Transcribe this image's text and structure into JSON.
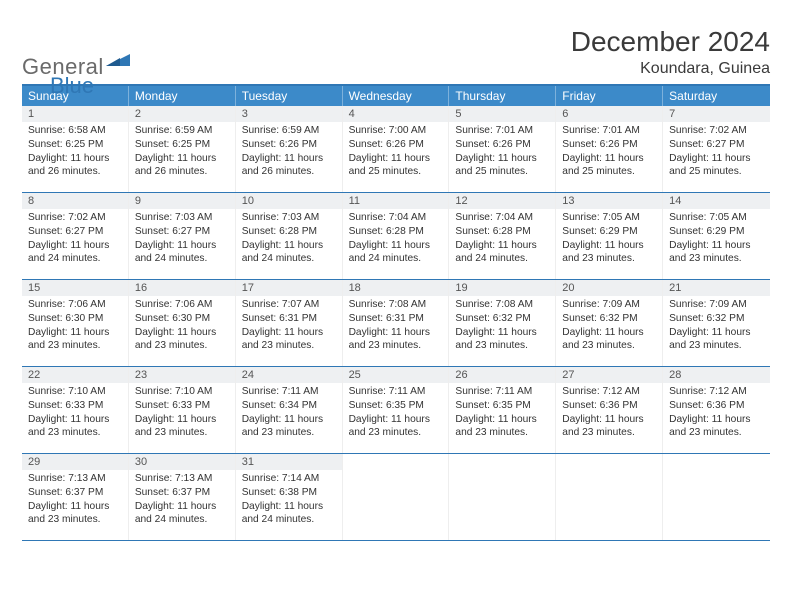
{
  "brand": {
    "text1": "General",
    "text2": "Blue",
    "color_general": "#6a6a6a",
    "color_blue": "#2f77b5",
    "mark_color": "#2f77b5"
  },
  "title": {
    "month": "December 2024",
    "location": "Koundara, Guinea"
  },
  "palette": {
    "header_bg": "#3c8ac9",
    "header_text": "#ffffff",
    "daynum_bg": "#eef0f2",
    "rule_color": "#2f77b5",
    "body_text": "#333333"
  },
  "weekdays": [
    "Sunday",
    "Monday",
    "Tuesday",
    "Wednesday",
    "Thursday",
    "Friday",
    "Saturday"
  ],
  "weeks": [
    [
      {
        "n": "1",
        "sr": "Sunrise: 6:58 AM",
        "ss": "Sunset: 6:25 PM",
        "d1": "Daylight: 11 hours",
        "d2": "and 26 minutes."
      },
      {
        "n": "2",
        "sr": "Sunrise: 6:59 AM",
        "ss": "Sunset: 6:25 PM",
        "d1": "Daylight: 11 hours",
        "d2": "and 26 minutes."
      },
      {
        "n": "3",
        "sr": "Sunrise: 6:59 AM",
        "ss": "Sunset: 6:26 PM",
        "d1": "Daylight: 11 hours",
        "d2": "and 26 minutes."
      },
      {
        "n": "4",
        "sr": "Sunrise: 7:00 AM",
        "ss": "Sunset: 6:26 PM",
        "d1": "Daylight: 11 hours",
        "d2": "and 25 minutes."
      },
      {
        "n": "5",
        "sr": "Sunrise: 7:01 AM",
        "ss": "Sunset: 6:26 PM",
        "d1": "Daylight: 11 hours",
        "d2": "and 25 minutes."
      },
      {
        "n": "6",
        "sr": "Sunrise: 7:01 AM",
        "ss": "Sunset: 6:26 PM",
        "d1": "Daylight: 11 hours",
        "d2": "and 25 minutes."
      },
      {
        "n": "7",
        "sr": "Sunrise: 7:02 AM",
        "ss": "Sunset: 6:27 PM",
        "d1": "Daylight: 11 hours",
        "d2": "and 25 minutes."
      }
    ],
    [
      {
        "n": "8",
        "sr": "Sunrise: 7:02 AM",
        "ss": "Sunset: 6:27 PM",
        "d1": "Daylight: 11 hours",
        "d2": "and 24 minutes."
      },
      {
        "n": "9",
        "sr": "Sunrise: 7:03 AM",
        "ss": "Sunset: 6:27 PM",
        "d1": "Daylight: 11 hours",
        "d2": "and 24 minutes."
      },
      {
        "n": "10",
        "sr": "Sunrise: 7:03 AM",
        "ss": "Sunset: 6:28 PM",
        "d1": "Daylight: 11 hours",
        "d2": "and 24 minutes."
      },
      {
        "n": "11",
        "sr": "Sunrise: 7:04 AM",
        "ss": "Sunset: 6:28 PM",
        "d1": "Daylight: 11 hours",
        "d2": "and 24 minutes."
      },
      {
        "n": "12",
        "sr": "Sunrise: 7:04 AM",
        "ss": "Sunset: 6:28 PM",
        "d1": "Daylight: 11 hours",
        "d2": "and 24 minutes."
      },
      {
        "n": "13",
        "sr": "Sunrise: 7:05 AM",
        "ss": "Sunset: 6:29 PM",
        "d1": "Daylight: 11 hours",
        "d2": "and 23 minutes."
      },
      {
        "n": "14",
        "sr": "Sunrise: 7:05 AM",
        "ss": "Sunset: 6:29 PM",
        "d1": "Daylight: 11 hours",
        "d2": "and 23 minutes."
      }
    ],
    [
      {
        "n": "15",
        "sr": "Sunrise: 7:06 AM",
        "ss": "Sunset: 6:30 PM",
        "d1": "Daylight: 11 hours",
        "d2": "and 23 minutes."
      },
      {
        "n": "16",
        "sr": "Sunrise: 7:06 AM",
        "ss": "Sunset: 6:30 PM",
        "d1": "Daylight: 11 hours",
        "d2": "and 23 minutes."
      },
      {
        "n": "17",
        "sr": "Sunrise: 7:07 AM",
        "ss": "Sunset: 6:31 PM",
        "d1": "Daylight: 11 hours",
        "d2": "and 23 minutes."
      },
      {
        "n": "18",
        "sr": "Sunrise: 7:08 AM",
        "ss": "Sunset: 6:31 PM",
        "d1": "Daylight: 11 hours",
        "d2": "and 23 minutes."
      },
      {
        "n": "19",
        "sr": "Sunrise: 7:08 AM",
        "ss": "Sunset: 6:32 PM",
        "d1": "Daylight: 11 hours",
        "d2": "and 23 minutes."
      },
      {
        "n": "20",
        "sr": "Sunrise: 7:09 AM",
        "ss": "Sunset: 6:32 PM",
        "d1": "Daylight: 11 hours",
        "d2": "and 23 minutes."
      },
      {
        "n": "21",
        "sr": "Sunrise: 7:09 AM",
        "ss": "Sunset: 6:32 PM",
        "d1": "Daylight: 11 hours",
        "d2": "and 23 minutes."
      }
    ],
    [
      {
        "n": "22",
        "sr": "Sunrise: 7:10 AM",
        "ss": "Sunset: 6:33 PM",
        "d1": "Daylight: 11 hours",
        "d2": "and 23 minutes."
      },
      {
        "n": "23",
        "sr": "Sunrise: 7:10 AM",
        "ss": "Sunset: 6:33 PM",
        "d1": "Daylight: 11 hours",
        "d2": "and 23 minutes."
      },
      {
        "n": "24",
        "sr": "Sunrise: 7:11 AM",
        "ss": "Sunset: 6:34 PM",
        "d1": "Daylight: 11 hours",
        "d2": "and 23 minutes."
      },
      {
        "n": "25",
        "sr": "Sunrise: 7:11 AM",
        "ss": "Sunset: 6:35 PM",
        "d1": "Daylight: 11 hours",
        "d2": "and 23 minutes."
      },
      {
        "n": "26",
        "sr": "Sunrise: 7:11 AM",
        "ss": "Sunset: 6:35 PM",
        "d1": "Daylight: 11 hours",
        "d2": "and 23 minutes."
      },
      {
        "n": "27",
        "sr": "Sunrise: 7:12 AM",
        "ss": "Sunset: 6:36 PM",
        "d1": "Daylight: 11 hours",
        "d2": "and 23 minutes."
      },
      {
        "n": "28",
        "sr": "Sunrise: 7:12 AM",
        "ss": "Sunset: 6:36 PM",
        "d1": "Daylight: 11 hours",
        "d2": "and 23 minutes."
      }
    ],
    [
      {
        "n": "29",
        "sr": "Sunrise: 7:13 AM",
        "ss": "Sunset: 6:37 PM",
        "d1": "Daylight: 11 hours",
        "d2": "and 23 minutes."
      },
      {
        "n": "30",
        "sr": "Sunrise: 7:13 AM",
        "ss": "Sunset: 6:37 PM",
        "d1": "Daylight: 11 hours",
        "d2": "and 24 minutes."
      },
      {
        "n": "31",
        "sr": "Sunrise: 7:14 AM",
        "ss": "Sunset: 6:38 PM",
        "d1": "Daylight: 11 hours",
        "d2": "and 24 minutes."
      },
      null,
      null,
      null,
      null
    ]
  ]
}
